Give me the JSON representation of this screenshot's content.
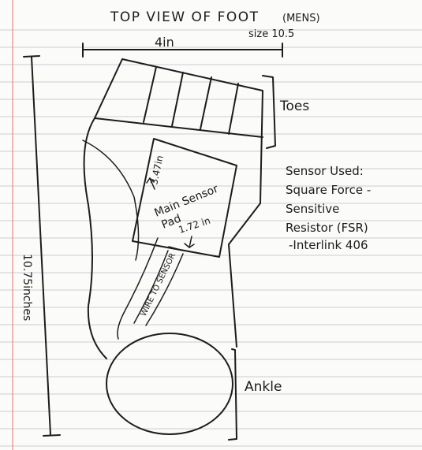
{
  "title": "TOP VIEW OF FOOT",
  "title_note": "(MENS)",
  "size_note": "size 10.5",
  "width_label": "4in",
  "length_label": "10.75inches",
  "toes_label": "Toes",
  "ankle_label": "Ankle",
  "sensor_text": {
    "line1": "Main Sensor",
    "line2": "Pad",
    "height_dim": "3.47in",
    "width_dim": "1.72 in"
  },
  "wire_label": "WIRE TO SENSOR",
  "sensor_note": [
    "Sensor Used:",
    "Square Force -",
    "Sensitive",
    "Resistor (FSR)",
    "-Interlink 406"
  ]
}
